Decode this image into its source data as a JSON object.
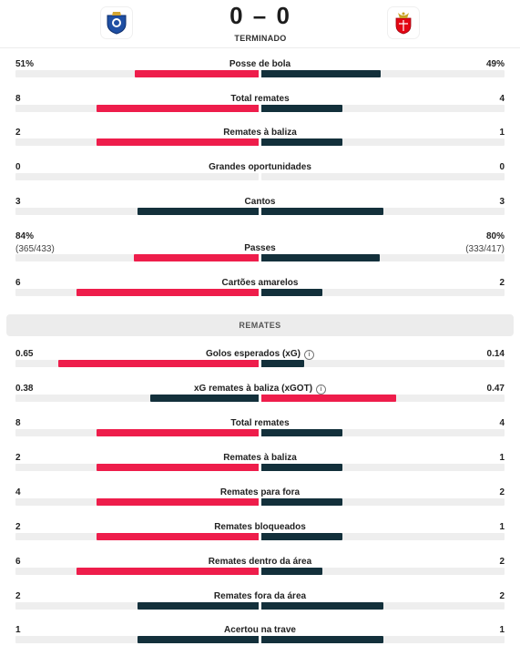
{
  "match": {
    "home_crest": "fc-porto-crest",
    "away_crest": "sl-benfica-crest",
    "score": "0 – 0",
    "status": "TERMINADO"
  },
  "colors": {
    "winner": "#ee1d4b",
    "loser": "#13303b",
    "track": "#eeeeee"
  },
  "general": [
    {
      "name": "Posse de bola",
      "home": "51%",
      "away": "49%",
      "home_val": 51,
      "away_val": 49,
      "max": 100
    },
    {
      "name": "Total remates",
      "home": "8",
      "away": "4",
      "home_val": 8,
      "away_val": 4,
      "max": 12
    },
    {
      "name": "Remates à baliza",
      "home": "2",
      "away": "1",
      "home_val": 2,
      "away_val": 1,
      "max": 3
    },
    {
      "name": "Grandes oportunidades",
      "home": "0",
      "away": "0",
      "home_val": 0,
      "away_val": 0,
      "max": 0
    },
    {
      "name": "Cantos",
      "home": "3",
      "away": "3",
      "home_val": 3,
      "away_val": 3,
      "max": 6
    },
    {
      "name": "Passes",
      "home": "84%",
      "away": "80%",
      "home_sub": "(365/433)",
      "away_sub": "(333/417)",
      "home_val": 84,
      "away_val": 80,
      "max": 164
    },
    {
      "name": "Cartões amarelos",
      "home": "6",
      "away": "2",
      "home_val": 6,
      "away_val": 2,
      "max": 8
    }
  ],
  "section_title": "REMATES",
  "shots": [
    {
      "name": "Golos esperados (xG)",
      "info": true,
      "home": "0.65",
      "away": "0.14",
      "home_val": 0.65,
      "away_val": 0.14,
      "max": 0.79
    },
    {
      "name": "xG remates à baliza (xGOT)",
      "info": true,
      "home": "0.38",
      "away": "0.47",
      "home_val": 0.38,
      "away_val": 0.47,
      "max": 0.85
    },
    {
      "name": "Total remates",
      "home": "8",
      "away": "4",
      "home_val": 8,
      "away_val": 4,
      "max": 12
    },
    {
      "name": "Remates à baliza",
      "home": "2",
      "away": "1",
      "home_val": 2,
      "away_val": 1,
      "max": 3
    },
    {
      "name": "Remates para fora",
      "home": "4",
      "away": "2",
      "home_val": 4,
      "away_val": 2,
      "max": 6
    },
    {
      "name": "Remates bloqueados",
      "home": "2",
      "away": "1",
      "home_val": 2,
      "away_val": 1,
      "max": 3
    },
    {
      "name": "Remates dentro da área",
      "home": "6",
      "away": "2",
      "home_val": 6,
      "away_val": 2,
      "max": 8
    },
    {
      "name": "Remates fora da área",
      "home": "2",
      "away": "2",
      "home_val": 2,
      "away_val": 2,
      "max": 4
    },
    {
      "name": "Acertou na trave",
      "home": "1",
      "away": "1",
      "home_val": 1,
      "away_val": 1,
      "max": 2
    }
  ]
}
